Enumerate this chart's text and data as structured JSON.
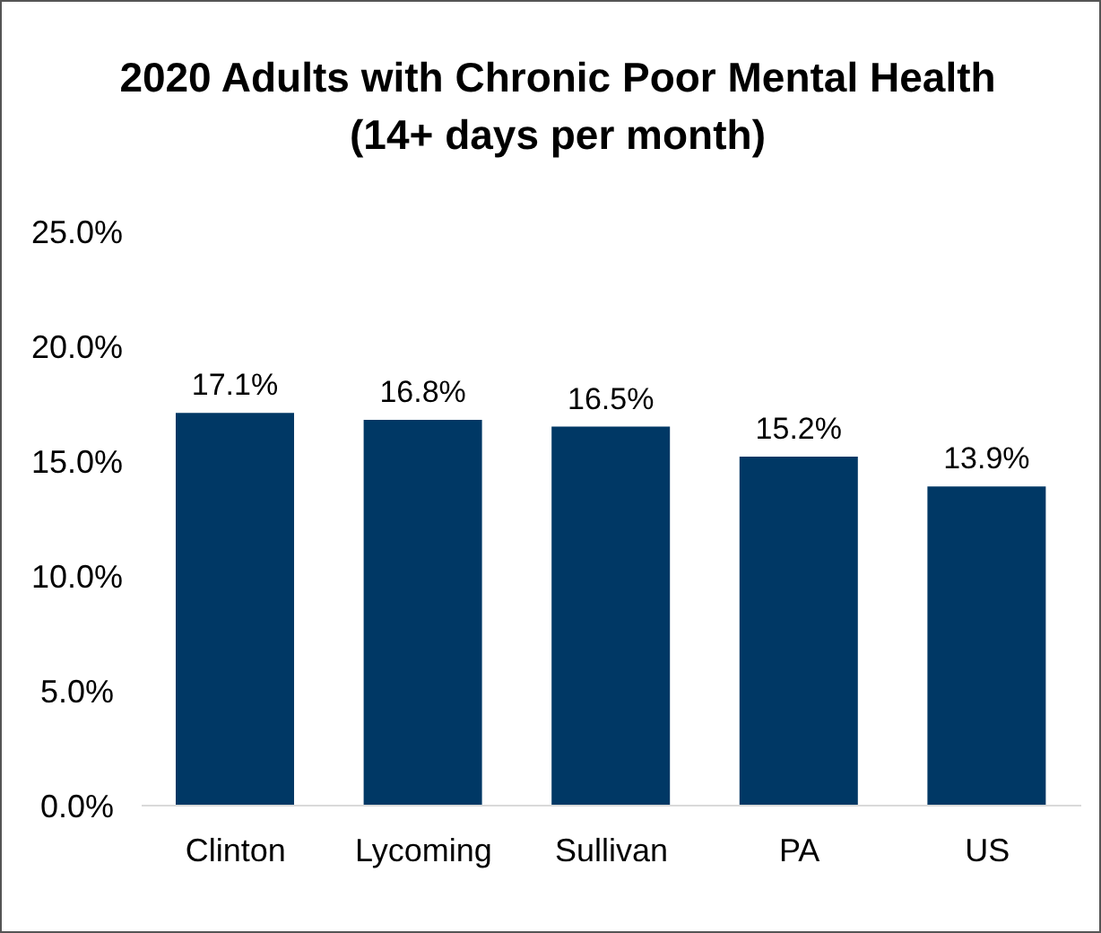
{
  "chart_data": {
    "type": "bar",
    "title": "2020 Adults with Chronic Poor Mental Health (14+ days per month)",
    "categories": [
      "Clinton",
      "Lycoming",
      "Sullivan",
      "PA",
      "US"
    ],
    "values": [
      17.1,
      16.8,
      16.5,
      15.2,
      13.9
    ],
    "value_labels": [
      "17.1%",
      "16.8%",
      "16.5%",
      "15.2%",
      "13.9%"
    ],
    "color": "#003865",
    "ylim": [
      0,
      25
    ],
    "yticks": [
      {
        "value": 0,
        "label": "0.0%"
      },
      {
        "value": 5,
        "label": "5.0%"
      },
      {
        "value": 10,
        "label": "10.0%"
      },
      {
        "value": 15,
        "label": "15.0%"
      },
      {
        "value": 20,
        "label": "20.0%"
      },
      {
        "value": 25,
        "label": "25.0%"
      }
    ],
    "grid": false
  }
}
